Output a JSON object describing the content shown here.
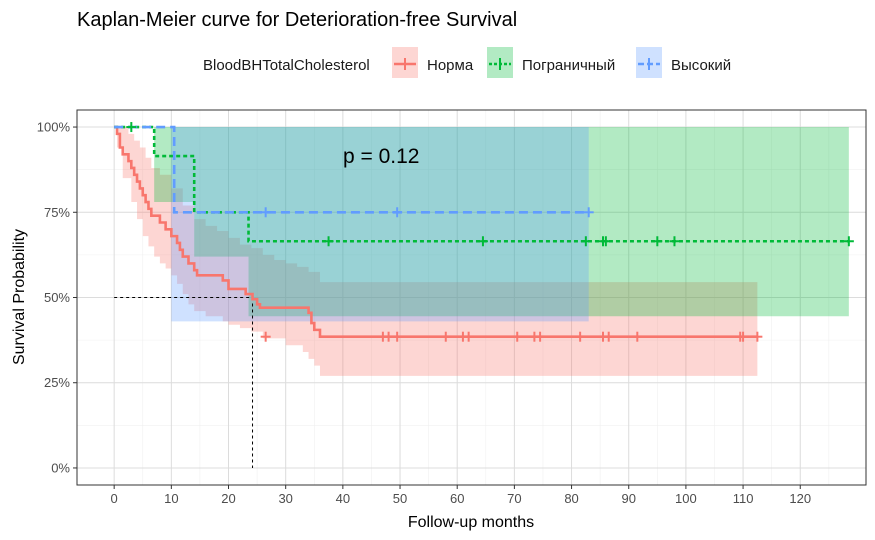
{
  "chart_data": {
    "type": "line",
    "subtype": "kaplan-meier",
    "title": "Kaplan-Meier curve for Deterioration-free Survival",
    "xlabel": "Follow-up months",
    "ylabel": "Survival Probability",
    "xlim": [
      -6.5,
      131.5
    ],
    "ylim": [
      -0.05,
      1.05
    ],
    "x_ticks": [
      0,
      10,
      20,
      30,
      40,
      50,
      60,
      70,
      80,
      90,
      100,
      110,
      120
    ],
    "y_ticks": [
      0,
      0.25,
      0.5,
      0.75,
      1.0
    ],
    "y_tick_labels": [
      "0%",
      "25%",
      "50%",
      "75%",
      "100%"
    ],
    "grid": true,
    "legend_title": "BloodBHTotalCholesterol",
    "legend_position": "top",
    "annotation": "p = 0.12",
    "median_line": {
      "y": 0.5,
      "x": 24.2
    },
    "series": [
      {
        "name": "Норма",
        "color": "#F8766D",
        "linetype": "solid",
        "steps": [
          [
            0,
            1.0
          ],
          [
            0.5,
            0.98
          ],
          [
            1,
            0.94
          ],
          [
            1.5,
            0.92
          ],
          [
            2.5,
            0.9
          ],
          [
            3,
            0.88
          ],
          [
            3.5,
            0.86
          ],
          [
            4,
            0.84
          ],
          [
            4.5,
            0.82
          ],
          [
            5,
            0.8
          ],
          [
            5.5,
            0.78
          ],
          [
            6,
            0.76
          ],
          [
            6.5,
            0.74
          ],
          [
            8,
            0.72
          ],
          [
            9,
            0.7
          ],
          [
            10,
            0.68
          ],
          [
            11,
            0.66
          ],
          [
            11.5,
            0.64
          ],
          [
            12,
            0.62
          ],
          [
            13,
            0.6
          ],
          [
            14,
            0.58
          ],
          [
            14.5,
            0.565
          ],
          [
            19,
            0.55
          ],
          [
            20,
            0.525
          ],
          [
            23,
            0.51
          ],
          [
            24.2,
            0.495
          ],
          [
            25,
            0.48
          ],
          [
            25.5,
            0.47
          ],
          [
            34,
            0.455
          ],
          [
            34.5,
            0.425
          ],
          [
            35,
            0.405
          ],
          [
            36,
            0.385
          ],
          [
            112.5,
            0.385
          ]
        ],
        "lower": [
          [
            0,
            1.0
          ],
          [
            0.5,
            0.94
          ],
          [
            1.5,
            0.85
          ],
          [
            3,
            0.78
          ],
          [
            4,
            0.73
          ],
          [
            5,
            0.68
          ],
          [
            6,
            0.65
          ],
          [
            7,
            0.62
          ],
          [
            8,
            0.6
          ],
          [
            9,
            0.585
          ],
          [
            10,
            0.565
          ],
          [
            11,
            0.54
          ],
          [
            12,
            0.51
          ],
          [
            13,
            0.48
          ],
          [
            14,
            0.46
          ],
          [
            16,
            0.445
          ],
          [
            19,
            0.43
          ],
          [
            20,
            0.42
          ],
          [
            22,
            0.41
          ],
          [
            24,
            0.4
          ],
          [
            26,
            0.38
          ],
          [
            30,
            0.36
          ],
          [
            33,
            0.34
          ],
          [
            34,
            0.32
          ],
          [
            35,
            0.3
          ],
          [
            36,
            0.27
          ],
          [
            112.5,
            0.27
          ]
        ],
        "upper": [
          [
            0,
            1.0
          ],
          [
            0.5,
            1.0
          ],
          [
            1.5,
            1.0
          ],
          [
            2.5,
            0.98
          ],
          [
            3.5,
            0.96
          ],
          [
            4.5,
            0.94
          ],
          [
            5.5,
            0.91
          ],
          [
            6.5,
            0.88
          ],
          [
            8,
            0.86
          ],
          [
            10,
            0.82
          ],
          [
            12,
            0.77
          ],
          [
            14,
            0.73
          ],
          [
            16,
            0.71
          ],
          [
            18,
            0.695
          ],
          [
            20,
            0.675
          ],
          [
            22,
            0.655
          ],
          [
            24,
            0.645
          ],
          [
            26,
            0.625
          ],
          [
            28,
            0.61
          ],
          [
            30,
            0.6
          ],
          [
            32,
            0.59
          ],
          [
            34,
            0.575
          ],
          [
            36,
            0.545
          ],
          [
            112.5,
            0.545
          ]
        ],
        "censored": [
          26.5,
          47,
          48,
          49.5,
          58,
          61,
          62,
          70.5,
          73.5,
          74.5,
          81.5,
          85.5,
          86.5,
          91.5,
          109.5,
          110,
          112.5
        ],
        "censored_y": 0.385
      },
      {
        "name": "Пограничный",
        "color": "#00BA38",
        "linetype": "dotted",
        "steps": [
          [
            0,
            1.0
          ],
          [
            7,
            0.915
          ],
          [
            14,
            0.75
          ],
          [
            23.5,
            0.665
          ],
          [
            128.5,
            0.665
          ]
        ],
        "lower": [
          [
            0,
            1.0
          ],
          [
            7,
            0.78
          ],
          [
            14,
            0.62
          ],
          [
            23.5,
            0.445
          ],
          [
            128.5,
            0.445
          ]
        ],
        "upper": [
          [
            0,
            1.0
          ],
          [
            128.5,
            0.995
          ]
        ],
        "censored": [
          3,
          37.5,
          64.5,
          82.5,
          85.5,
          86,
          95,
          98,
          128.5
        ],
        "censored_y_after": 0.665,
        "censored_early_y": 1.0
      },
      {
        "name": "Высокий",
        "color": "#619CFF",
        "linetype": "dashed",
        "steps": [
          [
            0,
            1.0
          ],
          [
            10.5,
            0.75
          ],
          [
            83,
            0.75
          ]
        ],
        "lower": [
          [
            0,
            1.0
          ],
          [
            10,
            0.43
          ],
          [
            23.5,
            0.43
          ],
          [
            23.5,
            0.43
          ],
          [
            83,
            0.43
          ]
        ],
        "upper": [
          [
            0,
            1.0
          ],
          [
            83,
            1.0
          ]
        ],
        "censored": [
          26.5,
          49.5,
          83
        ],
        "censored_y": 0.75
      }
    ]
  }
}
